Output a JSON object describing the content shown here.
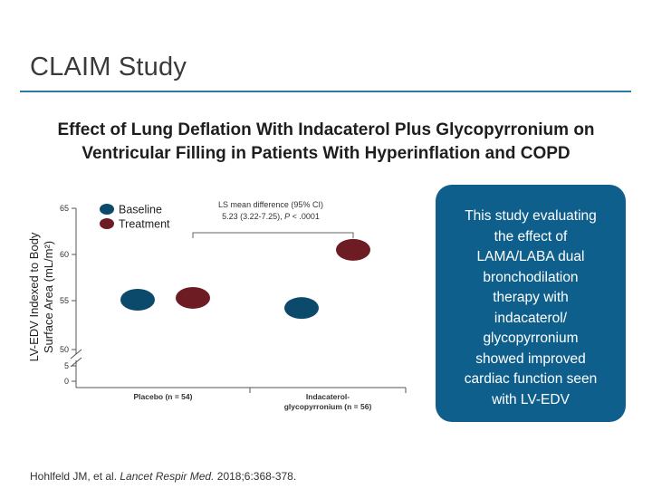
{
  "slide": {
    "title": "CLAIM Study",
    "chart_title_line1": "Effect of Lung Deflation With Indacaterol Plus Glycopyrronium on",
    "chart_title_line2": "Ventricular Filling in Patients With Hyperinflation and COPD"
  },
  "callout": {
    "lines": [
      "This study evaluating",
      "the effect of",
      "LAMA/LABA dual",
      "bronchodilation",
      "therapy with",
      "indacaterol/",
      "glycopyrronium",
      "showed improved",
      "cardiac function seen",
      "with LV-EDV"
    ]
  },
  "footer": {
    "authors": "Hohlfeld JM, et al. ",
    "journal": "Lancet Respir Med.",
    "details": " 2018;6:368-378."
  },
  "colors": {
    "baseline": "#0b4a6b",
    "treatment": "#6e1c24",
    "accent": "#2b7aa6",
    "callout_bg": "#0f5f8c"
  },
  "chart_data": {
    "type": "scatter",
    "ylabel_line1": "LV-EDV Indexed to Body",
    "ylabel_line2": "Surface Area (mL/m²)",
    "yticks_upper": [
      55,
      60,
      65
    ],
    "yticks_lower": [
      0,
      5,
      50
    ],
    "ylim_upper": [
      50,
      65
    ],
    "ylim_lower": [
      0,
      5
    ],
    "y_axis_break": true,
    "categories": [
      {
        "lines": [
          "Placebo (n = 54)"
        ]
      },
      {
        "lines": [
          "Indacaterol-",
          "glycopyrronium (n = 56)"
        ]
      }
    ],
    "series": [
      {
        "name": "Baseline",
        "color": "#0b4a6b",
        "values": [
          55.1,
          54.2
        ]
      },
      {
        "name": "Treatment",
        "color": "#6e1c24",
        "values": [
          55.3,
          60.5
        ]
      }
    ],
    "annotation": {
      "line1": "LS mean difference (95% CI)",
      "line2_prefix": "5.23 (3.22-7.25), ",
      "line2_italic": "P",
      "line2_suffix": " < .0001"
    },
    "legend_position": "top-left",
    "grid": false
  }
}
